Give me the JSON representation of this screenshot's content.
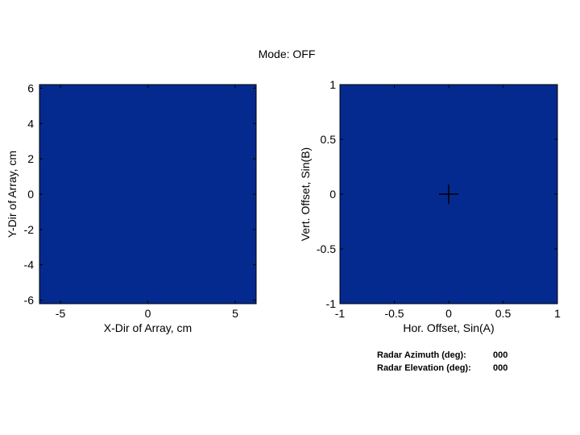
{
  "mode_title": "Mode:  OFF",
  "colors": {
    "plot_fill": "#052a8f",
    "axis": "#000000",
    "background": "#ffffff"
  },
  "chart_data": [
    {
      "type": "heatmap",
      "title": "",
      "xlabel": "X-Dir of Array, cm",
      "ylabel": "Y-Dir of Array, cm",
      "xlim": [
        -6.2,
        6.2
      ],
      "ylim": [
        -6.2,
        6.2
      ],
      "xticks": [
        -5,
        0,
        5
      ],
      "yticks": [
        -6,
        -4,
        -2,
        0,
        2,
        4,
        6
      ],
      "xtick_labels": [
        "-5",
        "0",
        "5"
      ],
      "ytick_labels": [
        "-6",
        "-4",
        "-2",
        "0",
        "2",
        "4",
        "6"
      ],
      "fill": "uniform",
      "grid": false
    },
    {
      "type": "scatter",
      "title": "",
      "xlabel": "Hor. Offset, Sin(A)",
      "ylabel": "Vert. Offset, Sin(B)",
      "xlim": [
        -1,
        1
      ],
      "ylim": [
        -1,
        1
      ],
      "xticks": [
        -1,
        -0.5,
        0,
        0.5,
        1
      ],
      "yticks": [
        -1,
        -0.5,
        0,
        0.5,
        1
      ],
      "xtick_labels": [
        "-1",
        "-0.5",
        "0",
        "0.5",
        "1"
      ],
      "ytick_labels": [
        "-1",
        "-0.5",
        "0",
        "0.5",
        "1"
      ],
      "points": [
        {
          "x": 0,
          "y": 0,
          "marker": "+"
        }
      ],
      "grid": false
    }
  ],
  "readouts": {
    "azimuth_label": "Radar Azimuth (deg):",
    "azimuth_value": "000",
    "elevation_label": "Radar Elevation (deg):",
    "elevation_value": "000"
  }
}
